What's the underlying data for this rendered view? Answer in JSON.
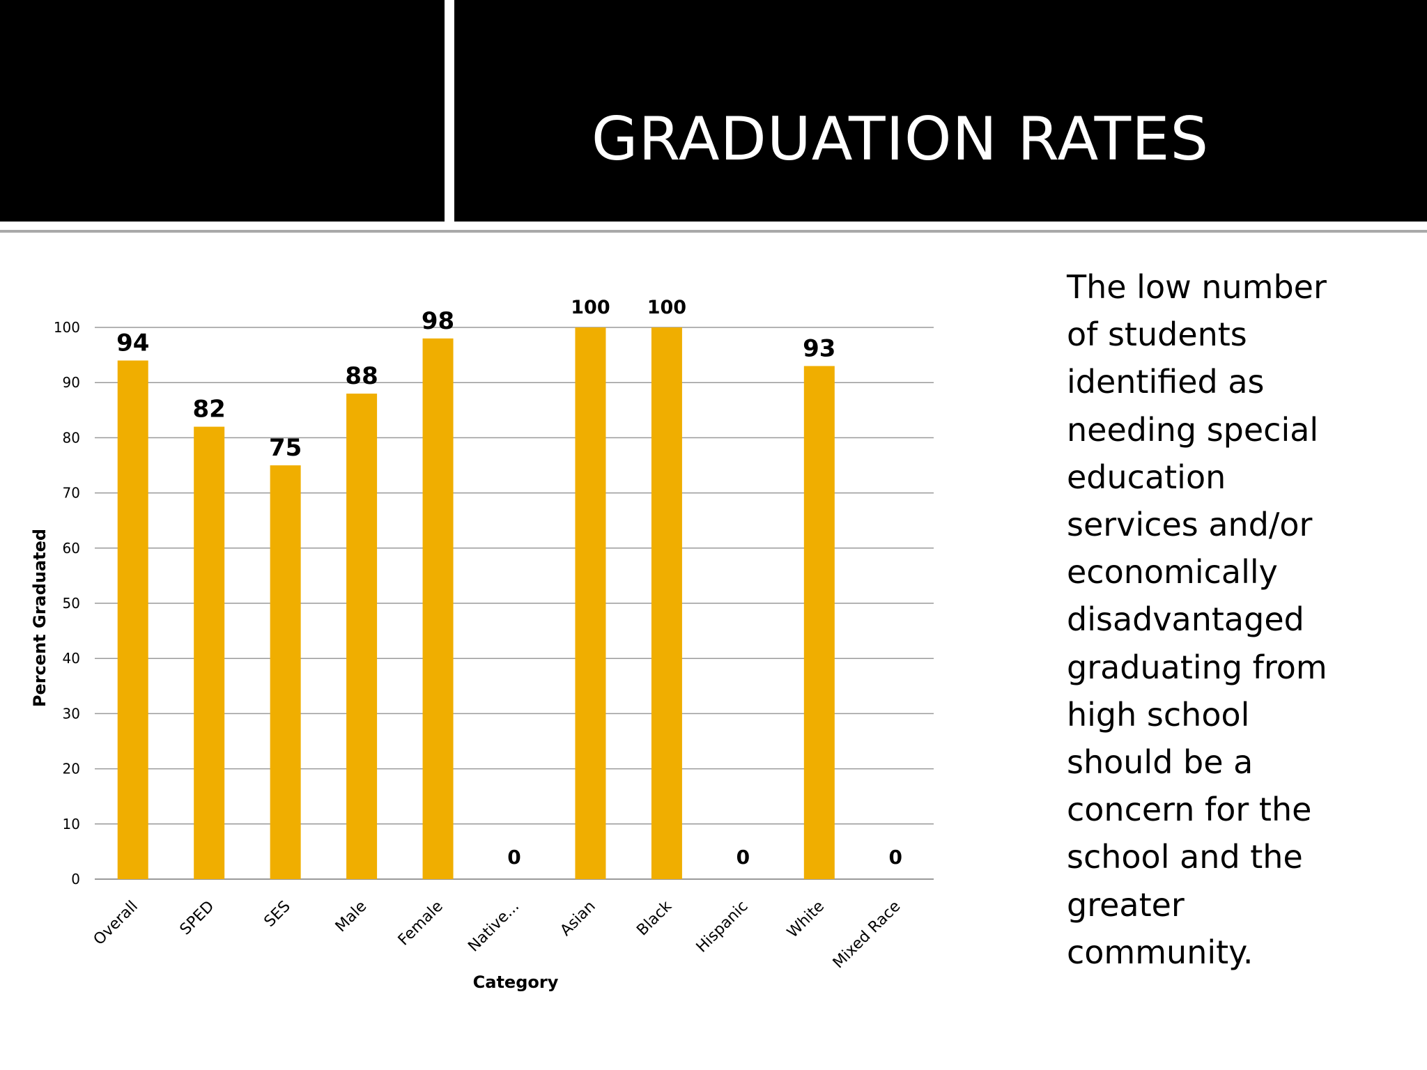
{
  "slide": {
    "title": "GRADUATION RATES",
    "body_lines": [
      "The low number",
      "of students",
      "identified as",
      "needing special",
      "education",
      "services and/or",
      "economically",
      "disadvantaged",
      "graduating from",
      "high school",
      "should be a",
      "concern for the",
      "school and the",
      "greater",
      "community."
    ]
  },
  "colors": {
    "bar": "#F0AE00",
    "header": "#000000",
    "gridline": "#9A9A9A"
  },
  "chart_data": {
    "type": "bar",
    "title": "",
    "xlabel": "Category",
    "ylabel": "Percent Graduated",
    "ylim": [
      0,
      100
    ],
    "ytick_step": 10,
    "yticks": [
      "0",
      "10",
      "20",
      "30",
      "40",
      "50",
      "60",
      "70",
      "80",
      "90",
      "100"
    ],
    "grid": true,
    "categories": [
      "Overall",
      "SPED",
      "SES",
      "Male",
      "Female",
      "Native...",
      "Asian",
      "Black",
      "Hispanic",
      "White",
      "Mixed Race"
    ],
    "values": [
      94,
      82,
      75,
      88,
      98,
      0,
      100,
      100,
      0,
      93,
      0
    ],
    "data_labels": [
      "94",
      "82",
      "75",
      "88",
      "98",
      "0",
      "100",
      "100",
      "0",
      "93",
      "0"
    ]
  }
}
